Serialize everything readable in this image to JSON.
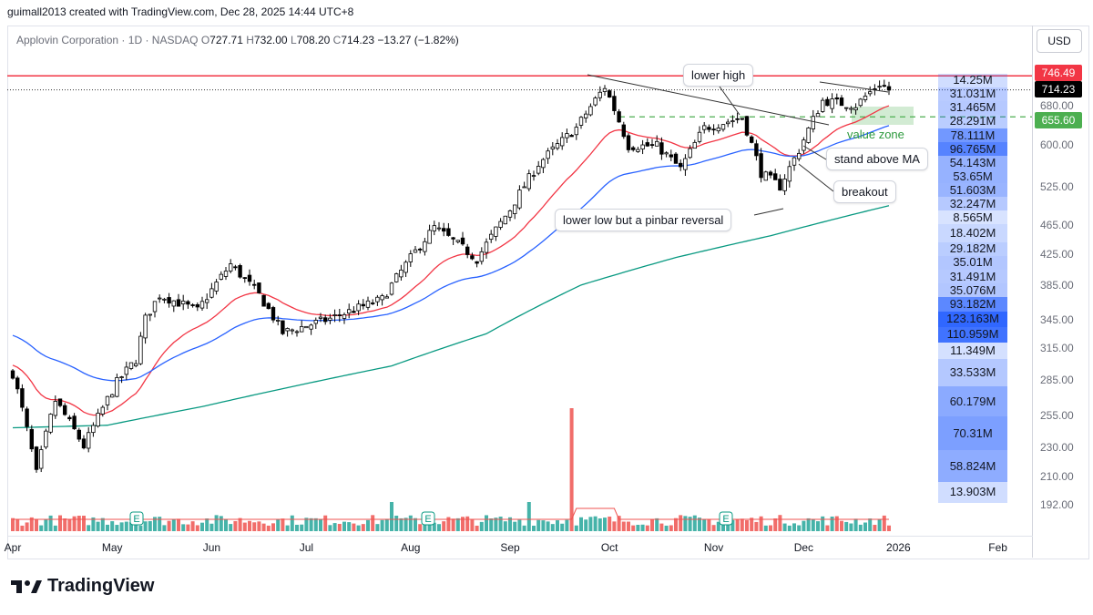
{
  "credit": "guimall2013 created with TradingView.com, Dec 28, 2025 14:44 UTC+8",
  "legend": {
    "name": "Applovin Corporation",
    "interval": "1D",
    "exchange": "NASDAQ",
    "open": "727.71",
    "high": "732.00",
    "low": "708.20",
    "close": "714.23",
    "change": "−13.27 (−1.82%)",
    "o": "O",
    "h": "H",
    "l": "L",
    "c": "C",
    "sep": "·"
  },
  "currency": "USD",
  "brand": "TradingView",
  "price_tags": {
    "resistance": "746.49",
    "last": "714.23",
    "support": "655.60"
  },
  "annotations": {
    "lower_high": "lower high",
    "value_zone": "value zone",
    "stand_above_ma": "stand above MA",
    "breakout": "breakout",
    "pinbar": "lower low but a pinbar reversal",
    "earnings": "E"
  },
  "colors": {
    "up": "#ffffff",
    "down": "#000000",
    "ma_fast": "#f23645",
    "ma_mid": "#2962ff",
    "ma_slow": "#089981",
    "vol_up": "#26a69a",
    "vol_down": "#ef5350",
    "resistance": "#f23645",
    "support": "#4caf50"
  },
  "chart_data": {
    "type": "candlestick",
    "title": "Applovin Corporation · 1D · NASDAQ",
    "ylim": [
      190,
      760
    ],
    "yscale": "log",
    "y_ticks": [
      "680.00",
      "600.00",
      "525.00",
      "465.00",
      "425.00",
      "385.00",
      "345.00",
      "315.00",
      "285.00",
      "255.00",
      "230.00",
      "210.00",
      "192.00"
    ],
    "y_tick_values": [
      680,
      600,
      525,
      465,
      425,
      385,
      345,
      315,
      285,
      255,
      230,
      210,
      192
    ],
    "x_ticks": [
      "Apr",
      "May",
      "Jun",
      "Jul",
      "Aug",
      "Sep",
      "Oct",
      "Nov",
      "Dec",
      "2026",
      "Feb"
    ],
    "x_tick_bar_index": [
      0,
      21,
      42,
      62,
      84,
      105,
      126,
      148,
      167,
      187,
      208
    ],
    "close_waypoints": [
      [
        0,
        291
      ],
      [
        5,
        212
      ],
      [
        9,
        267
      ],
      [
        15,
        231
      ],
      [
        22,
        283
      ],
      [
        26,
        304
      ],
      [
        28,
        346
      ],
      [
        31,
        373
      ],
      [
        39,
        355
      ],
      [
        46,
        411
      ],
      [
        52,
        373
      ],
      [
        57,
        331
      ],
      [
        67,
        346
      ],
      [
        78,
        368
      ],
      [
        89,
        462
      ],
      [
        98,
        418
      ],
      [
        105,
        489
      ],
      [
        111,
        565
      ],
      [
        119,
        633
      ],
      [
        125,
        721
      ],
      [
        130,
        598
      ],
      [
        136,
        598
      ],
      [
        141,
        556
      ],
      [
        146,
        633
      ],
      [
        154,
        654
      ],
      [
        158,
        549
      ],
      [
        162,
        526
      ],
      [
        166,
        590
      ],
      [
        171,
        690
      ],
      [
        178,
        680
      ],
      [
        183,
        728
      ],
      [
        185,
        714
      ]
    ],
    "ema_fast_seed": 300,
    "ema_fast_period": 20,
    "ema_mid_seed": 330,
    "ema_mid_period": 50,
    "ma_slow_waypoints": [
      [
        0,
        245
      ],
      [
        20,
        247
      ],
      [
        40,
        262
      ],
      [
        60,
        280
      ],
      [
        80,
        298
      ],
      [
        100,
        330
      ],
      [
        120,
        385
      ],
      [
        140,
        420
      ],
      [
        160,
        450
      ],
      [
        185,
        495
      ]
    ],
    "levels": {
      "resistance": 746.49,
      "last": 714.23,
      "support": 655.6
    },
    "volume_profile": [
      {
        "label": "14.25M",
        "v": 14.25
      },
      {
        "label": "31.031M",
        "v": 31.031
      },
      {
        "label": "31.465M",
        "v": 31.465
      },
      {
        "label": "28.291M",
        "v": 28.291
      },
      {
        "label": "78.111M",
        "v": 78.111
      },
      {
        "label": "96.765M",
        "v": 96.765
      },
      {
        "label": "54.143M",
        "v": 54.143
      },
      {
        "label": "53.65M",
        "v": 53.65
      },
      {
        "label": "51.603M",
        "v": 51.603
      },
      {
        "label": "32.247M",
        "v": 32.247
      },
      {
        "label": "8.565M",
        "v": 8.565
      },
      {
        "label": "18.402M",
        "v": 18.402
      },
      {
        "label": "29.182M",
        "v": 29.182
      },
      {
        "label": "35.01M",
        "v": 35.01
      },
      {
        "label": "31.491M",
        "v": 31.491
      },
      {
        "label": "35.076M",
        "v": 35.076
      },
      {
        "label": "93.182M",
        "v": 93.182
      },
      {
        "label": "123.163M",
        "v": 123.163
      },
      {
        "label": "110.959M",
        "v": 110.959
      },
      {
        "label": "11.349M",
        "v": 11.349
      },
      {
        "label": "33.533M",
        "v": 33.533
      },
      {
        "label": "60.179M",
        "v": 60.179
      },
      {
        "label": "70.31M",
        "v": 70.31
      },
      {
        "label": "58.824M",
        "v": 58.824
      },
      {
        "label": "13.903M",
        "v": 13.903
      }
    ],
    "volume_profile_price_edges": [
      752,
      735,
      718,
      701,
      684,
      650,
      630,
      610,
      590,
      570,
      545,
      522,
      490,
      468,
      447,
      425,
      405,
      385,
      365,
      345,
      325,
      295,
      265,
      235,
      210,
      195
    ]
  }
}
